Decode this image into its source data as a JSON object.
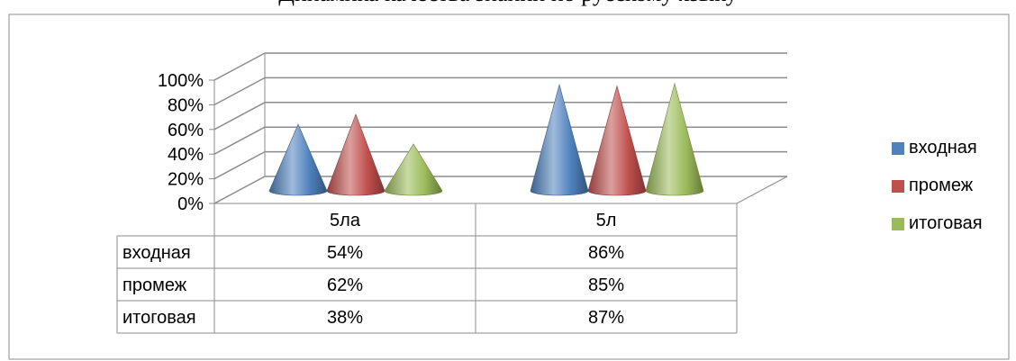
{
  "chart_data": {
    "type": "bar",
    "title": "Динамика качества знаний по русскому языку",
    "categories": [
      "5ла",
      "5л"
    ],
    "series": [
      {
        "name": "входная",
        "values": [
          54,
          86
        ],
        "color": "#4F81BD"
      },
      {
        "name": "промеж",
        "values": [
          62,
          85
        ],
        "color": "#C0504D"
      },
      {
        "name": "итоговая",
        "values": [
          38,
          87
        ],
        "color": "#9BBB59"
      }
    ],
    "value_labels": [
      [
        "54%",
        "86%"
      ],
      [
        "62%",
        "85%"
      ],
      [
        "38%",
        "87%"
      ]
    ],
    "ylim": [
      0,
      100
    ],
    "yticks": [
      "0%",
      "20%",
      "40%",
      "60%",
      "80%",
      "100%"
    ],
    "y_tick_values": [
      0,
      20,
      40,
      60,
      80,
      100
    ],
    "grid": true,
    "legend": "right",
    "shape": "cone",
    "data_table": true
  }
}
